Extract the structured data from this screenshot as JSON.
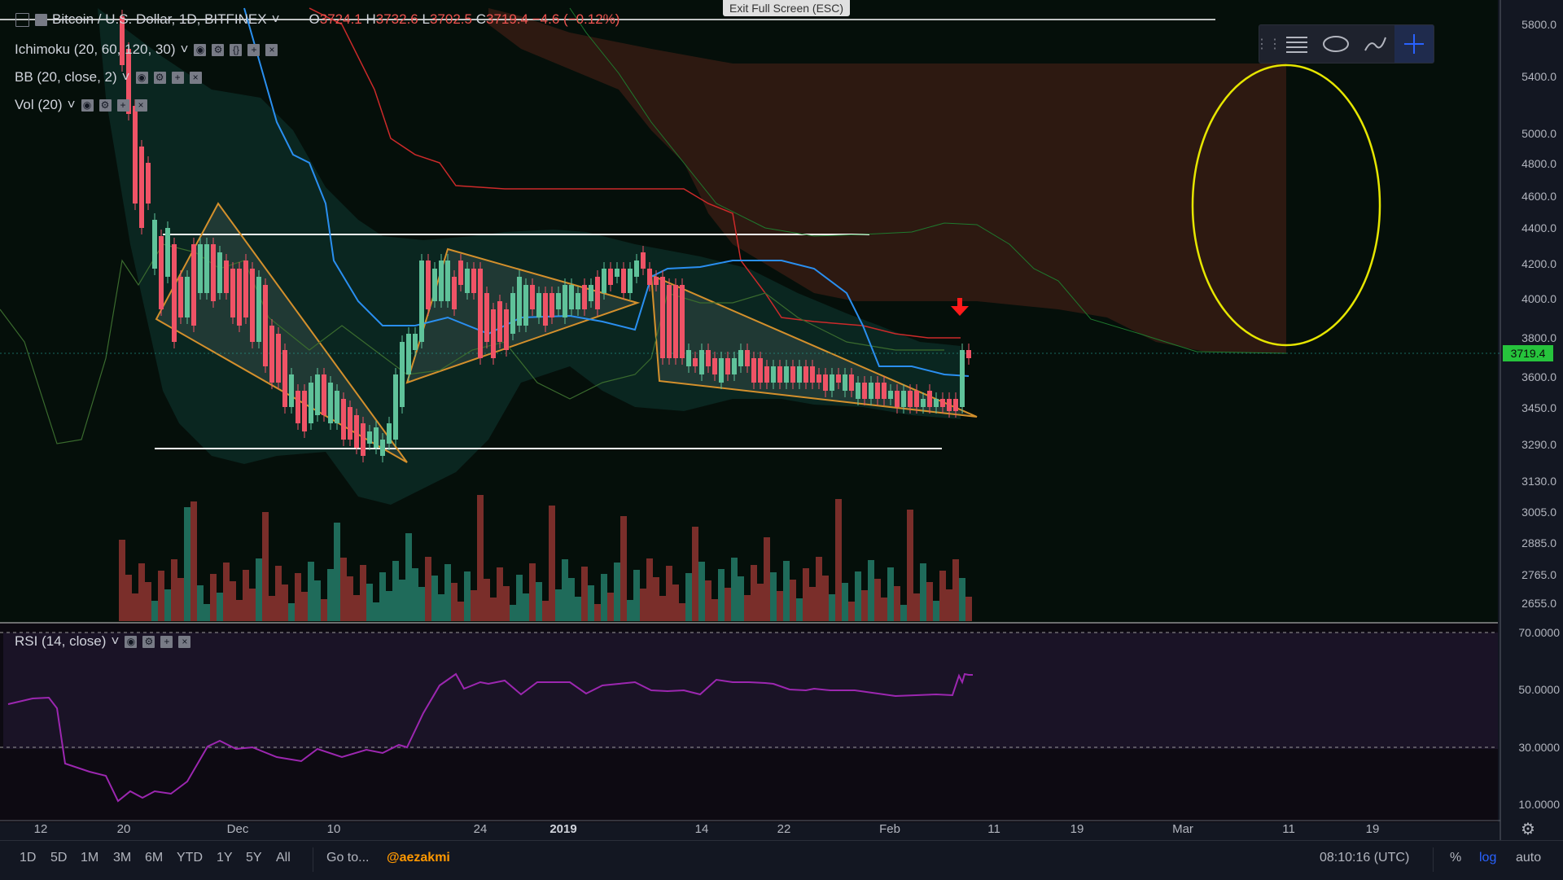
{
  "exit_fullscreen": "Exit Full Screen (ESC)",
  "symbol": {
    "title": "Bitcoin / U.S. Dollar, 1D, BITFINEX",
    "open_label": "O",
    "open": "3724.1",
    "high_label": "H",
    "high": "3732.6",
    "low_label": "L",
    "low": "3702.5",
    "close_label": "C",
    "close": "3719.4",
    "change": "−4.6 (−0.12%)"
  },
  "indicators": {
    "ichimoku": "Ichimoku (20, 60, 120, 30)",
    "bb": "BB (20, close, 2)",
    "vol": "Vol (20)",
    "rsi": "RSI (14, close)"
  },
  "price_axis": [
    "5800.0",
    "5400.0",
    "5000.0",
    "4800.0",
    "4600.0",
    "4400.0",
    "4200.0",
    "4000.0",
    "3800.0",
    "3600.0",
    "3450.0",
    "3290.0",
    "3130.0",
    "3005.0",
    "2885.0",
    "2765.0",
    "2655.0"
  ],
  "current_price": "3719.4",
  "rsi_axis": [
    "70.0000",
    "50.0000",
    "30.0000",
    "10.0000"
  ],
  "time_axis": [
    "12",
    "20",
    "Dec",
    "10",
    "24",
    "2019",
    "14",
    "22",
    "Feb",
    "11",
    "19",
    "Mar",
    "11",
    "19"
  ],
  "timeframes": [
    "1D",
    "5D",
    "1M",
    "3M",
    "6M",
    "YTD",
    "1Y",
    "5Y",
    "All"
  ],
  "goto": "Go to...",
  "author": "@aezakmi",
  "clock": "08:10:16 (UTC)",
  "scale_options": [
    "%",
    "log",
    "auto"
  ],
  "colors": {
    "up": "#26a69a",
    "down": "#ef5350",
    "accent": "#2962ff",
    "rsi": "#9c27b0",
    "cloud": "#3b1d14"
  },
  "icons": [
    "grip-icon",
    "lines-icon",
    "shape-icon",
    "brush-icon",
    "crosshair-icon",
    "gear-icon"
  ]
}
